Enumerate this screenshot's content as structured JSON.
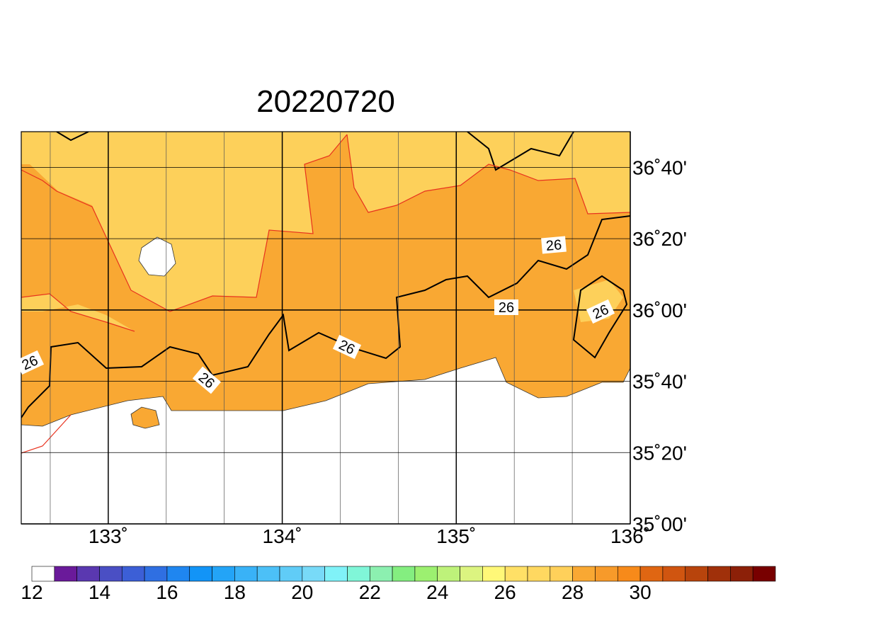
{
  "title": "20220720",
  "map": {
    "lonlim": [
      132.5,
      136
    ],
    "latlim": [
      35,
      36.8333
    ],
    "lon_ticks": [
      {
        "value": 133,
        "label": "133˚"
      },
      {
        "value": 134,
        "label": "134˚"
      },
      {
        "value": 135,
        "label": "135˚"
      },
      {
        "value": 136,
        "label": "136˚"
      }
    ],
    "lat_ticks": [
      {
        "value": 35,
        "label": "35˚00'"
      },
      {
        "value": 35.3333,
        "label": "35˚20'"
      },
      {
        "value": 35.6667,
        "label": "35˚40'"
      },
      {
        "value": 36,
        "label": "36˚00'"
      },
      {
        "value": 36.3333,
        "label": "36˚20'"
      },
      {
        "value": 36.6667,
        "label": "36˚40'"
      }
    ],
    "contour_labels": [
      "26",
      "26",
      "26",
      "26",
      "26",
      "26"
    ]
  },
  "colorbar": {
    "ticks": [
      12,
      14,
      16,
      18,
      20,
      22,
      24,
      26,
      28,
      30
    ],
    "colors": [
      "#ffffff",
      "#6a1a9a",
      "#5a38b0",
      "#4a4fc4",
      "#3c5fd6",
      "#2f6fe2",
      "#1f86f0",
      "#1294f7",
      "#23a4f7",
      "#39b2f7",
      "#4cc0f7",
      "#60ccf7",
      "#78daf8",
      "#80f2f8",
      "#80f6d8",
      "#8cf0b0",
      "#84ee80",
      "#9cf070",
      "#bef27a",
      "#dcf480",
      "#fff878",
      "#ffe066",
      "#ffd860",
      "#ffd05a",
      "#f9a833",
      "#f79a2a",
      "#f78a1a",
      "#e06612",
      "#d05510",
      "#b8440c",
      "#a0300a",
      "#8c2008",
      "#780000"
    ]
  }
}
